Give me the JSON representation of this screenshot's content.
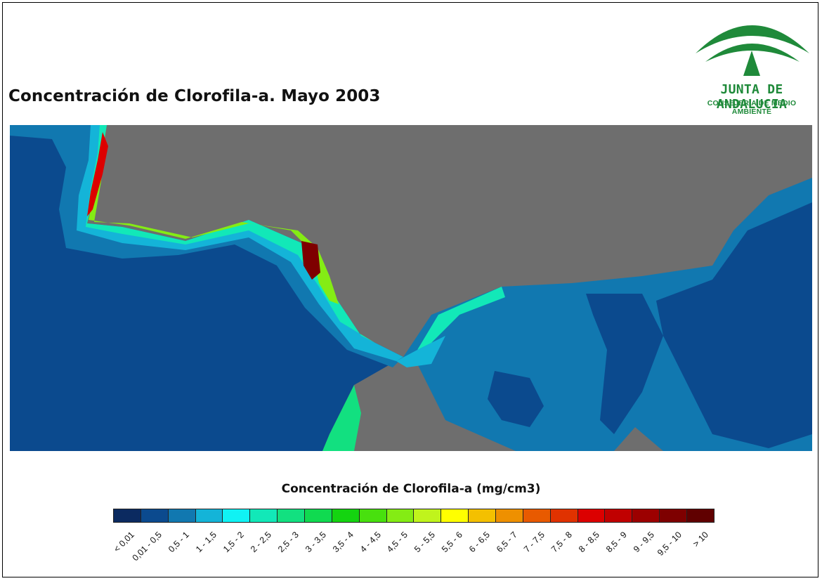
{
  "title": "Concentración de Clorofila-a. Mayo 2003",
  "logo": {
    "name": "JUNTA DE ANDALUCIA",
    "subtitle": "CONSEJERÍA DE MEDIO AMBIENTE",
    "icon": "junta-de-andalucia-emblem",
    "color": "#1f8a3a"
  },
  "map": {
    "land_color": "#6e6e6e",
    "ocean_color": "#0a4a8a"
  },
  "legend": {
    "title": "Concentración de Clorofila-a (mg/cm3)",
    "classes": [
      {
        "label": "< 0,01",
        "color": "#0b2a60"
      },
      {
        "label": "0,01 - 0,5",
        "color": "#0b4a8e"
      },
      {
        "label": "0,5 - 1",
        "color": "#1178b0"
      },
      {
        "label": "1 - 1,5",
        "color": "#14b4d8"
      },
      {
        "label": "1,5 - 2",
        "color": "#10f2f4"
      },
      {
        "label": "2 - 2,5",
        "color": "#12e8b8"
      },
      {
        "label": "2,5 - 3",
        "color": "#12e080"
      },
      {
        "label": "3 - 3,5",
        "color": "#10da50"
      },
      {
        "label": "3,5 - 4",
        "color": "#14d410"
      },
      {
        "label": "4 - 4,5",
        "color": "#48e00e"
      },
      {
        "label": "4,5 - 5",
        "color": "#84ec14"
      },
      {
        "label": "5 - 5,5",
        "color": "#c0f41c"
      },
      {
        "label": "5,5 - 6",
        "color": "#ffff00"
      },
      {
        "label": "6 - 6,5",
        "color": "#f4c000"
      },
      {
        "label": "6,5 - 7",
        "color": "#ee9000"
      },
      {
        "label": "7 - 7,5",
        "color": "#e85a00"
      },
      {
        "label": "7,5 - 8",
        "color": "#e03200"
      },
      {
        "label": "8 - 8,5",
        "color": "#dc0000"
      },
      {
        "label": "8,5 - 9",
        "color": "#c00000"
      },
      {
        "label": "9 - 9,5",
        "color": "#9c0000"
      },
      {
        "label": "9,5 - 10",
        "color": "#7e0000"
      },
      {
        "label": "> 10",
        "color": "#600000"
      }
    ]
  }
}
